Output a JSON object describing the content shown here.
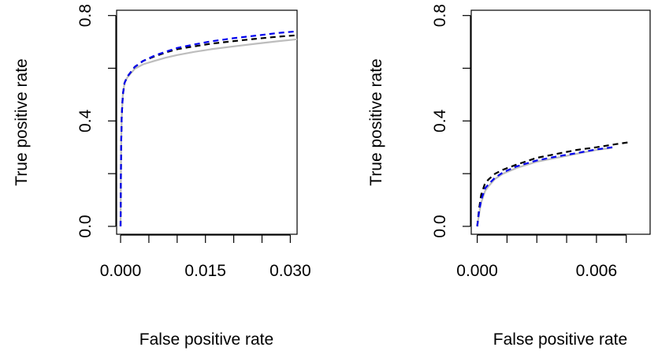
{
  "chart_data": [
    {
      "type": "line",
      "xlabel": "False positive rate",
      "ylabel": "True positive rate",
      "xlim": [
        -0.0007,
        0.0312
      ],
      "ylim": [
        -0.03,
        0.82
      ],
      "xticks": [
        0.0,
        0.005,
        0.01,
        0.015,
        0.02,
        0.025,
        0.03
      ],
      "xtick_labels": [
        "0.000",
        "",
        "",
        "0.015",
        "",
        "",
        "0.030"
      ],
      "yticks": [
        0.0,
        0.2,
        0.4,
        0.6,
        0.8
      ],
      "ytick_labels": [
        "0.0",
        "",
        "0.4",
        "",
        "0.8"
      ],
      "grid": false,
      "series": [
        {
          "color": "#bdbdbd",
          "dash": "solid",
          "x": [
            0.0,
            0.0001,
            0.0002,
            0.0004,
            0.0007,
            0.0012,
            0.0025,
            0.004,
            0.006,
            0.008,
            0.01,
            0.013,
            0.016,
            0.02,
            0.024,
            0.028,
            0.0312
          ],
          "y": [
            0.0,
            0.3,
            0.42,
            0.5,
            0.545,
            0.565,
            0.598,
            0.615,
            0.628,
            0.64,
            0.65,
            0.662,
            0.672,
            0.683,
            0.693,
            0.703,
            0.71
          ]
        },
        {
          "color": "#000000",
          "dash": "dashed",
          "x": [
            0.0,
            0.0001,
            0.0002,
            0.0004,
            0.0007,
            0.0012,
            0.0025,
            0.004,
            0.006,
            0.008,
            0.01,
            0.013,
            0.016,
            0.02,
            0.024,
            0.028,
            0.0312
          ],
          "y": [
            0.0,
            0.3,
            0.42,
            0.5,
            0.545,
            0.568,
            0.605,
            0.628,
            0.645,
            0.66,
            0.672,
            0.683,
            0.693,
            0.703,
            0.712,
            0.72,
            0.725
          ]
        },
        {
          "color": "#0000ee",
          "dash": "dashed",
          "x": [
            0.0,
            0.0001,
            0.0002,
            0.0004,
            0.0007,
            0.0012,
            0.0025,
            0.004,
            0.006,
            0.008,
            0.01,
            0.013,
            0.016,
            0.02,
            0.024,
            0.028,
            0.0312
          ],
          "y": [
            0.0,
            0.3,
            0.42,
            0.5,
            0.545,
            0.568,
            0.605,
            0.628,
            0.648,
            0.663,
            0.677,
            0.69,
            0.702,
            0.714,
            0.724,
            0.734,
            0.74
          ]
        }
      ]
    },
    {
      "type": "line",
      "xlabel": "False positive rate",
      "ylabel": "True positive rate",
      "xlim": [
        -0.0003,
        0.0087
      ],
      "ylim": [
        -0.03,
        0.82
      ],
      "xticks": [
        0.0,
        0.0015,
        0.003,
        0.0045,
        0.006,
        0.0075
      ],
      "xtick_labels": [
        "0.000",
        "",
        "",
        "",
        "0.006",
        ""
      ],
      "yticks": [
        0.0,
        0.2,
        0.4,
        0.6,
        0.8
      ],
      "ytick_labels": [
        "0.0",
        "",
        "0.4",
        "",
        "0.8"
      ],
      "grid": false,
      "series": [
        {
          "color": "#bdbdbd",
          "dash": "solid",
          "x": [
            0.0,
            0.0001,
            0.0002,
            0.0004,
            0.0006,
            0.0009,
            0.0013,
            0.002,
            0.003,
            0.004,
            0.005,
            0.006,
            0.0068
          ],
          "y": [
            0.0,
            0.05,
            0.09,
            0.135,
            0.155,
            0.18,
            0.2,
            0.222,
            0.245,
            0.26,
            0.275,
            0.29,
            0.298
          ]
        },
        {
          "color": "#000000",
          "dash": "dashed",
          "x": [
            0.0,
            0.0001,
            0.0002,
            0.0004,
            0.0006,
            0.0009,
            0.0013,
            0.002,
            0.003,
            0.004,
            0.005,
            0.006,
            0.007,
            0.0077
          ],
          "y": [
            0.0,
            0.07,
            0.12,
            0.165,
            0.18,
            0.2,
            0.215,
            0.235,
            0.26,
            0.275,
            0.29,
            0.3,
            0.312,
            0.32
          ]
        },
        {
          "color": "#0000ee",
          "dash": "dashed",
          "x": [
            0.0,
            0.0001,
            0.0002,
            0.0004,
            0.0006,
            0.0009,
            0.0013,
            0.002,
            0.003,
            0.004,
            0.005,
            0.006,
            0.0068
          ],
          "y": [
            0.0,
            0.06,
            0.1,
            0.145,
            0.162,
            0.185,
            0.205,
            0.228,
            0.25,
            0.265,
            0.278,
            0.292,
            0.3
          ]
        }
      ]
    }
  ]
}
